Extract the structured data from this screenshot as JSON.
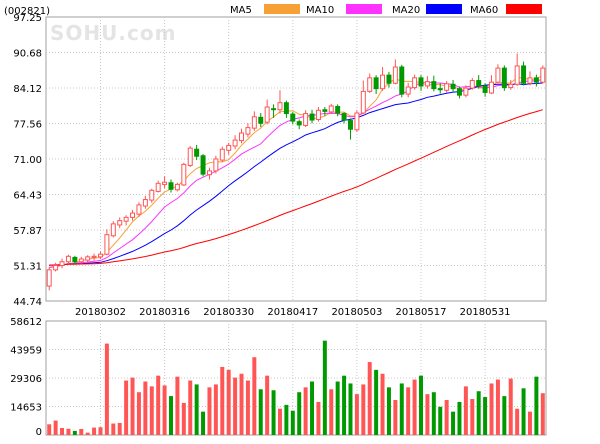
{
  "header": {
    "code": "(002821)",
    "watermark": "SOHU.com"
  },
  "legend": [
    {
      "label": "MA5",
      "color": "#f7a035"
    },
    {
      "label": "MA10",
      "color": "#ff33ff"
    },
    {
      "label": "MA20",
      "color": "#0000ff"
    },
    {
      "label": "MA60",
      "color": "#ff0000"
    }
  ],
  "colors": {
    "up": "#ff5555",
    "down": "#009900",
    "grid": "#c8c8c8",
    "frame": "#a0a0a0"
  },
  "chart_data": {
    "type": "candlestick",
    "price_axis": {
      "ticks": [
        "97.25",
        "90.68",
        "84.12",
        "77.56",
        "71.00",
        "64.43",
        "57.87",
        "51.31",
        "44.74"
      ],
      "range": [
        44.74,
        97.25
      ]
    },
    "volume_axis": {
      "ticks": [
        "58612",
        "43959",
        "29306",
        "14653",
        "0"
      ],
      "range": [
        0,
        58612
      ]
    },
    "x_tick_labels": [
      "20180302",
      "20180316",
      "20180330",
      "20180417",
      "20180503",
      "20180517",
      "20180531"
    ],
    "x_tick_index": [
      8,
      18,
      28,
      38,
      48,
      58,
      68
    ],
    "days": 78,
    "candles": [
      [
        47.5,
        50.5,
        46.7,
        51.0
      ],
      [
        50.5,
        51.3,
        50.2,
        51.8
      ],
      [
        51.3,
        52.0,
        50.8,
        52.6
      ],
      [
        52.0,
        53.0,
        51.6,
        53.3
      ],
      [
        52.8,
        52.0,
        51.5,
        53.1
      ],
      [
        52.0,
        52.5,
        51.7,
        52.9
      ],
      [
        52.3,
        52.9,
        52.0,
        53.2
      ],
      [
        52.8,
        53.0,
        52.2,
        53.5
      ],
      [
        52.9,
        53.4,
        52.5,
        53.9
      ],
      [
        53.4,
        57.0,
        53.2,
        58.0
      ],
      [
        56.8,
        59.0,
        56.5,
        59.5
      ],
      [
        58.8,
        59.6,
        58.2,
        60.2
      ],
      [
        59.5,
        60.2,
        58.7,
        60.6
      ],
      [
        60.2,
        61.0,
        59.6,
        61.6
      ],
      [
        60.8,
        62.5,
        60.3,
        63.0
      ],
      [
        62.3,
        63.5,
        61.8,
        64.2
      ],
      [
        63.4,
        65.2,
        62.9,
        65.5
      ],
      [
        65.0,
        66.5,
        64.8,
        67.0
      ],
      [
        66.3,
        66.7,
        65.6,
        67.8
      ],
      [
        66.6,
        65.4,
        64.8,
        67.2
      ],
      [
        65.3,
        66.3,
        65.0,
        66.6
      ],
      [
        66.2,
        70.0,
        66.0,
        70.3
      ],
      [
        69.8,
        73.0,
        69.5,
        73.4
      ],
      [
        72.8,
        71.5,
        70.8,
        73.6
      ],
      [
        71.6,
        68.2,
        67.8,
        71.9
      ],
      [
        68.1,
        68.8,
        67.2,
        69.4
      ],
      [
        68.8,
        71.0,
        68.3,
        71.6
      ],
      [
        70.8,
        72.8,
        70.4,
        73.3
      ],
      [
        72.6,
        73.5,
        71.8,
        74.0
      ],
      [
        73.4,
        74.5,
        72.8,
        75.4
      ],
      [
        74.4,
        75.8,
        73.9,
        76.6
      ],
      [
        75.6,
        76.8,
        75.0,
        77.6
      ],
      [
        76.7,
        78.8,
        76.2,
        79.8
      ],
      [
        78.7,
        77.6,
        76.9,
        79.5
      ],
      [
        77.8,
        80.6,
        77.4,
        82.0
      ],
      [
        80.3,
        80.2,
        78.6,
        81.1
      ],
      [
        80.1,
        81.4,
        79.4,
        83.7
      ],
      [
        81.4,
        79.4,
        78.6,
        81.8
      ],
      [
        79.3,
        78.0,
        77.4,
        79.7
      ],
      [
        77.9,
        77.3,
        76.5,
        78.3
      ],
      [
        77.2,
        79.4,
        76.9,
        80.0
      ],
      [
        79.3,
        78.2,
        77.6,
        80.1
      ],
      [
        78.3,
        80.0,
        77.9,
        80.6
      ],
      [
        80.1,
        79.8,
        79.0,
        80.6
      ],
      [
        79.7,
        80.8,
        79.3,
        81.2
      ],
      [
        80.7,
        79.5,
        78.9,
        81.1
      ],
      [
        79.4,
        78.2,
        77.6,
        79.6
      ],
      [
        78.1,
        76.5,
        74.6,
        78.5
      ],
      [
        76.4,
        79.5,
        76.0,
        80.0
      ],
      [
        79.5,
        83.5,
        79.3,
        85.5
      ],
      [
        83.5,
        86.0,
        83.2,
        86.8
      ],
      [
        86.0,
        84.0,
        83.0,
        86.5
      ],
      [
        84.0,
        86.5,
        83.6,
        88.0
      ],
      [
        86.5,
        85.0,
        84.2,
        87.1
      ],
      [
        85.0,
        88.0,
        84.8,
        89.4
      ],
      [
        88.0,
        83.0,
        82.4,
        88.4
      ],
      [
        83.0,
        84.3,
        82.4,
        85.1
      ],
      [
        84.2,
        86.0,
        83.8,
        86.6
      ],
      [
        86.0,
        84.5,
        83.6,
        86.5
      ],
      [
        84.5,
        85.3,
        84.0,
        86.3
      ],
      [
        85.3,
        84.0,
        83.5,
        86.4
      ],
      [
        84.0,
        83.8,
        83.1,
        85.0
      ],
      [
        83.7,
        84.9,
        83.3,
        85.4
      ],
      [
        84.8,
        84.0,
        83.5,
        85.6
      ],
      [
        84.0,
        82.8,
        82.2,
        84.4
      ],
      [
        82.8,
        84.1,
        82.4,
        84.6
      ],
      [
        84.1,
        85.5,
        83.8,
        86.0
      ],
      [
        85.5,
        84.5,
        84.0,
        86.5
      ],
      [
        84.5,
        83.3,
        82.5,
        85.0
      ],
      [
        83.2,
        85.2,
        83.0,
        86.5
      ],
      [
        85.2,
        87.8,
        85.0,
        88.5
      ],
      [
        87.8,
        84.2,
        83.6,
        88.3
      ],
      [
        84.2,
        84.8,
        83.8,
        85.6
      ],
      [
        84.8,
        88.2,
        84.5,
        90.5
      ],
      [
        88.2,
        85.0,
        84.6,
        89.0
      ],
      [
        85.0,
        86.0,
        84.6,
        87.2
      ],
      [
        86.0,
        85.2,
        84.4,
        86.6
      ],
      [
        85.2,
        87.8,
        85.0,
        88.3
      ]
    ],
    "volumes": [
      5500,
      7400,
      3600,
      3200,
      2100,
      3100,
      1200,
      3800,
      4000,
      47000,
      5900,
      6200,
      28000,
      29500,
      22000,
      27500,
      25000,
      30500,
      25500,
      20000,
      30000,
      16500,
      28000,
      26000,
      12000,
      24500,
      26000,
      35000,
      33500,
      29500,
      31500,
      28000,
      40000,
      23500,
      30500,
      23000,
      13500,
      15500,
      12500,
      22000,
      24500,
      27500,
      17000,
      48500,
      23500,
      27500,
      30500,
      26500,
      21000,
      26000,
      37500,
      33500,
      31500,
      24500,
      18000,
      26500,
      24500,
      28500,
      30500,
      21000,
      22000,
      14500,
      18000,
      12000,
      17000,
      25000,
      18500,
      22500,
      19500,
      26500,
      28500,
      20000,
      29000,
      13500,
      24000,
      12000,
      30000,
      21500
    ]
  }
}
